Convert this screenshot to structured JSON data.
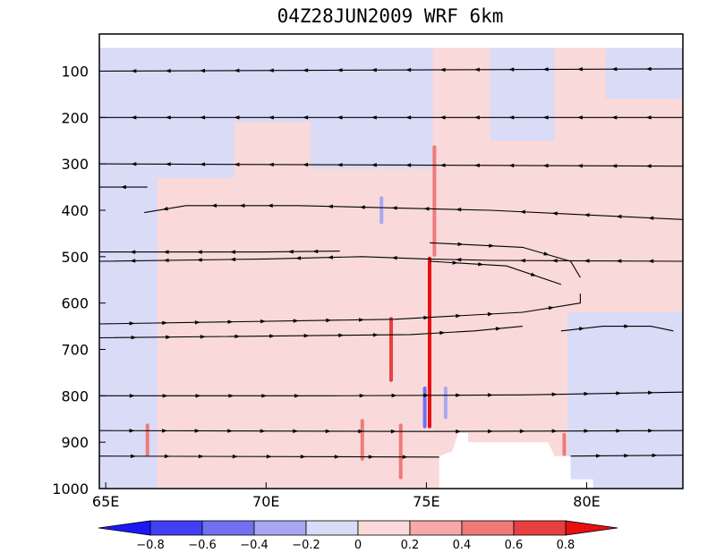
{
  "title": "04Z28JUN2009    WRF 6km",
  "colors": {
    "background": "#ffffff",
    "light_blue": "#d9dbf7",
    "light_pink": "#f9d9d9",
    "medium_red": "#f07a7a",
    "strong_red": "#e81e1e",
    "strong_blue": "#6060f0",
    "terrain": "#ffffff",
    "frame": "#000000"
  },
  "chart_data": {
    "type": "heatmap",
    "title": "04Z28JUN2009    WRF 6km",
    "x_range": [
      64.8,
      83.0
    ],
    "y_range": [
      1000,
      20
    ],
    "x_ticks": [
      65,
      70,
      75,
      80
    ],
    "x_tick_labels": [
      "65E",
      "70E",
      "75E",
      "80E"
    ],
    "y_ticks": [
      100,
      200,
      300,
      400,
      500,
      600,
      700,
      800,
      900,
      1000
    ],
    "y_tick_labels": [
      "100",
      "200",
      "300",
      "400",
      "500",
      "600",
      "700",
      "800",
      "900",
      "1000"
    ],
    "colorbar": {
      "levels": [
        -0.8,
        -0.6,
        -0.4,
        -0.2,
        0,
        0.2,
        0.4,
        0.6,
        0.8
      ],
      "labels": [
        "−0.8",
        "−0.6",
        "−0.4",
        "−0.2",
        "0",
        "0.2",
        "0.4",
        "0.6",
        "0.8"
      ],
      "colors": [
        "#1a1af5",
        "#4040f2",
        "#7070f0",
        "#a8a8f2",
        "#d9dbf7",
        "#f9d9d9",
        "#f7a8a8",
        "#f07a7a",
        "#e84040",
        "#e81010"
      ]
    },
    "background_field": [
      {
        "xmin": 64.8,
        "xmax": 66.6,
        "ymin": 50,
        "ymax": 1000,
        "level": -0.1
      },
      {
        "xmin": 66.6,
        "xmax": 69.0,
        "ymin": 50,
        "ymax": 330,
        "level": -0.1
      },
      {
        "xmin": 69.0,
        "xmax": 71.4,
        "ymin": 50,
        "ymax": 210,
        "level": -0.1
      },
      {
        "xmin": 71.4,
        "xmax": 75.2,
        "ymin": 50,
        "ymax": 310,
        "level": -0.1
      },
      {
        "xmin": 77.0,
        "xmax": 79.0,
        "ymin": 50,
        "ymax": 250,
        "level": -0.1
      },
      {
        "xmin": 79.4,
        "xmax": 83.0,
        "ymin": 620,
        "ymax": 1000,
        "level": -0.1
      },
      {
        "xmin": 80.6,
        "xmax": 83.0,
        "ymin": 50,
        "ymax": 160,
        "level": -0.1
      }
    ],
    "streaks": [
      {
        "x": 73.9,
        "ymin": 630,
        "ymax": 770,
        "level": 0.7
      },
      {
        "x": 73.6,
        "ymin": 370,
        "ymax": 430,
        "level": -0.4
      },
      {
        "x": 75.1,
        "ymin": 500,
        "ymax": 870,
        "level": 0.9
      },
      {
        "x": 75.25,
        "ymin": 260,
        "ymax": 500,
        "level": 0.5
      },
      {
        "x": 74.95,
        "ymin": 780,
        "ymax": 870,
        "level": -0.5
      },
      {
        "x": 75.6,
        "ymin": 780,
        "ymax": 850,
        "level": -0.3
      },
      {
        "x": 73.0,
        "ymin": 850,
        "ymax": 940,
        "level": 0.4
      },
      {
        "x": 74.2,
        "ymin": 860,
        "ymax": 980,
        "level": 0.4
      },
      {
        "x": 66.3,
        "ymin": 860,
        "ymax": 930,
        "level": 0.5
      },
      {
        "x": 79.3,
        "ymin": 880,
        "ymax": 930,
        "level": 0.4
      }
    ],
    "terrain": [
      [
        75.4,
        1000
      ],
      [
        75.4,
        930
      ],
      [
        75.8,
        920
      ],
      [
        76.0,
        880
      ],
      [
        76.3,
        880
      ],
      [
        76.3,
        900
      ],
      [
        78.8,
        900
      ],
      [
        79.0,
        930
      ],
      [
        79.5,
        930
      ],
      [
        79.5,
        980
      ],
      [
        80.2,
        980
      ],
      [
        80.2,
        1000
      ]
    ],
    "streamlines": [
      {
        "direction": "west",
        "points": [
          [
            64.8,
            100
          ],
          [
            83.0,
            95
          ]
        ]
      },
      {
        "direction": "west",
        "points": [
          [
            64.8,
            200
          ],
          [
            83.0,
            200
          ]
        ]
      },
      {
        "direction": "west",
        "points": [
          [
            64.8,
            300
          ],
          [
            83.0,
            305
          ]
        ]
      },
      {
        "direction": "west",
        "points": [
          [
            64.8,
            350
          ],
          [
            66.3,
            350
          ]
        ]
      },
      {
        "direction": "west",
        "points": [
          [
            66.2,
            405
          ],
          [
            67.5,
            390
          ],
          [
            71.0,
            390
          ],
          [
            77.0,
            400
          ],
          [
            83.0,
            420
          ]
        ]
      },
      {
        "direction": "west",
        "points": [
          [
            64.8,
            490
          ],
          [
            70.0,
            490
          ],
          [
            72.3,
            488
          ]
        ]
      },
      {
        "direction": "west",
        "points": [
          [
            64.8,
            510
          ],
          [
            70.0,
            505
          ],
          [
            73.0,
            500
          ],
          [
            75.0,
            505
          ],
          [
            77.0,
            508
          ],
          [
            83.0,
            510
          ]
        ]
      },
      {
        "direction": "east",
        "points": [
          [
            75.1,
            470
          ],
          [
            78.0,
            480
          ],
          [
            79.5,
            510
          ],
          [
            79.8,
            545
          ]
        ]
      },
      {
        "direction": "east",
        "points": [
          [
            75.1,
            510
          ],
          [
            77.5,
            520
          ],
          [
            79.2,
            560
          ]
        ]
      },
      {
        "direction": "east",
        "points": [
          [
            64.8,
            645
          ],
          [
            74.0,
            635
          ],
          [
            78.0,
            620
          ],
          [
            79.8,
            600
          ],
          [
            79.8,
            580
          ]
        ]
      },
      {
        "direction": "east",
        "points": [
          [
            64.8,
            675
          ],
          [
            74.5,
            668
          ],
          [
            76.5,
            660
          ],
          [
            78.0,
            650
          ]
        ]
      },
      {
        "direction": "east",
        "points": [
          [
            79.2,
            660
          ],
          [
            80.5,
            650
          ],
          [
            82.0,
            650
          ],
          [
            82.7,
            660
          ]
        ]
      },
      {
        "direction": "east",
        "points": [
          [
            64.8,
            800
          ],
          [
            72.0,
            800
          ],
          [
            78.0,
            798
          ],
          [
            83.0,
            792
          ]
        ]
      },
      {
        "direction": "east",
        "points": [
          [
            64.8,
            875
          ],
          [
            75.0,
            877
          ],
          [
            83.0,
            875
          ]
        ]
      },
      {
        "direction": "east",
        "points": [
          [
            64.8,
            930
          ],
          [
            75.4,
            932
          ]
        ]
      },
      {
        "direction": "east",
        "points": [
          [
            79.5,
            930
          ],
          [
            83.0,
            928
          ]
        ]
      }
    ]
  }
}
